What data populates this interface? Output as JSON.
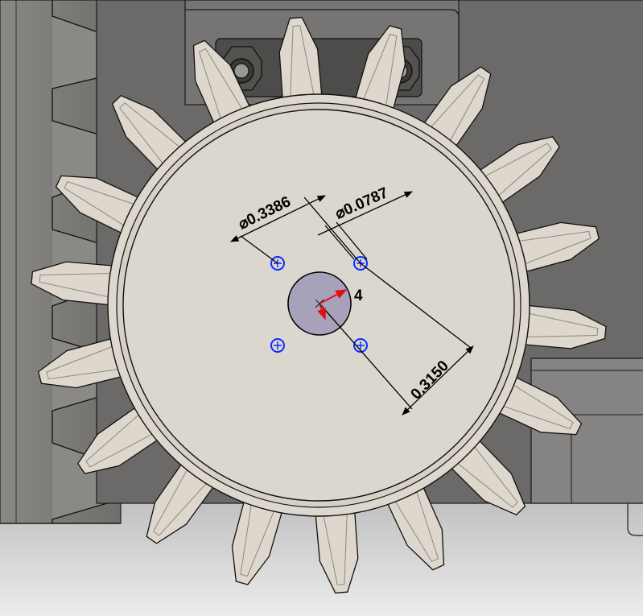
{
  "scene": {
    "part": "spur gear",
    "tooth_count": 18,
    "hole_count": 4
  },
  "dimensions": {
    "outer_hole_dia": "0.3386",
    "small_hole_dia": "0.0787",
    "hole_spacing": "0.3150",
    "pattern_count": "4"
  },
  "symbols": {
    "diameter": "⌀"
  },
  "colors": {
    "gear_face": "#dcd6cc",
    "gear_edge": "#b9b2a6",
    "hole_fill": "#a7a1ba",
    "sketch_point": "#0a2cff",
    "triad": "#e01010"
  }
}
